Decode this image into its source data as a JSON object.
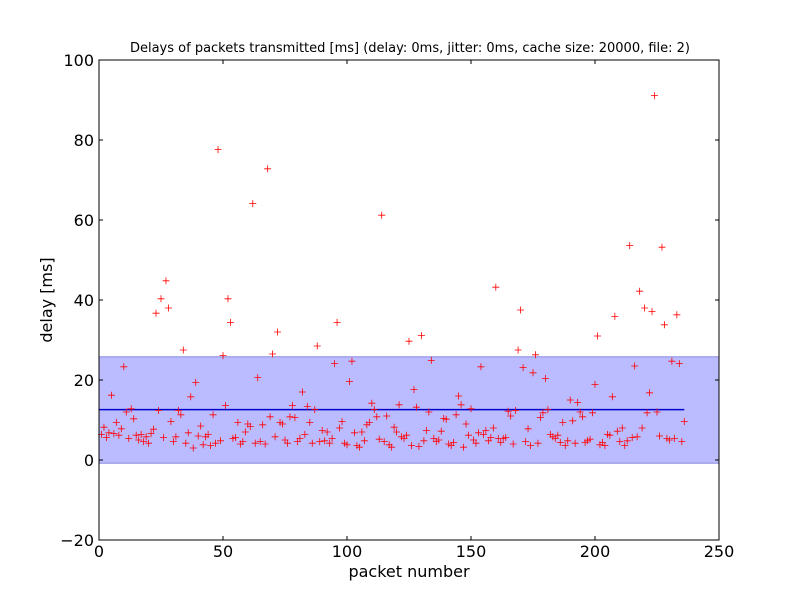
{
  "chart_data": {
    "type": "scatter",
    "title": "Delays of packets transmitted [ms] (delay: 0ms, jitter: 0ms, cache size: 20000, file: 2)",
    "xlabel": "packet number",
    "ylabel": "delay [ms]",
    "xlim": [
      0,
      250
    ],
    "ylim": [
      -20,
      100
    ],
    "xticks": [
      0,
      50,
      100,
      150,
      200,
      250
    ],
    "yticks": [
      -20,
      0,
      20,
      40,
      60,
      80,
      100
    ],
    "xtick_labels": [
      "0",
      "50",
      "100",
      "150",
      "200",
      "250"
    ],
    "ytick_labels": [
      "−20",
      "0",
      "20",
      "40",
      "60",
      "80",
      "100"
    ],
    "grid": false,
    "legend": "none",
    "colors": {
      "points": "#ff0000",
      "mean_line": "#0000cc",
      "band_fill": "#bbbbff",
      "band_edge": "#8888dd"
    },
    "mean": {
      "value": 12.6,
      "x_start": 0,
      "x_end": 236
    },
    "std_band": {
      "y_low": -0.8,
      "y_high": 25.8,
      "x_start": 0,
      "x_end": 250
    },
    "series": [
      {
        "marker": "+",
        "points": [
          [
            1,
            6.4
          ],
          [
            2,
            8.2
          ],
          [
            3,
            5.6
          ],
          [
            4,
            6.8
          ],
          [
            5,
            16.2
          ],
          [
            6,
            6.6
          ],
          [
            7,
            9.4
          ],
          [
            8,
            6.2
          ],
          [
            9,
            7.8
          ],
          [
            10,
            23.3
          ],
          [
            11,
            12.0
          ],
          [
            12,
            5.4
          ],
          [
            13,
            12.8
          ],
          [
            14,
            10.3
          ],
          [
            15,
            6.2
          ],
          [
            16,
            5.0
          ],
          [
            17,
            6.4
          ],
          [
            18,
            4.6
          ],
          [
            19,
            5.8
          ],
          [
            20,
            4.2
          ],
          [
            21,
            6.6
          ],
          [
            22,
            7.7
          ],
          [
            23,
            36.7
          ],
          [
            24,
            12.4
          ],
          [
            25,
            40.3
          ],
          [
            26,
            5.6
          ],
          [
            27,
            44.8
          ],
          [
            28,
            38.0
          ],
          [
            29,
            9.6
          ],
          [
            30,
            4.6
          ],
          [
            31,
            5.8
          ],
          [
            32,
            12.4
          ],
          [
            33,
            11.3
          ],
          [
            34,
            27.5
          ],
          [
            35,
            4.2
          ],
          [
            36,
            6.8
          ],
          [
            37,
            15.8
          ],
          [
            38,
            3.0
          ],
          [
            39,
            19.4
          ],
          [
            40,
            6.0
          ],
          [
            41,
            8.5
          ],
          [
            42,
            3.8
          ],
          [
            43,
            5.8
          ],
          [
            44,
            6.4
          ],
          [
            45,
            3.6
          ],
          [
            46,
            11.3
          ],
          [
            47,
            4.2
          ],
          [
            48,
            77.6
          ],
          [
            49,
            4.8
          ],
          [
            50,
            26.1
          ],
          [
            51,
            13.6
          ],
          [
            52,
            40.3
          ],
          [
            53,
            34.4
          ],
          [
            54,
            5.4
          ],
          [
            55,
            5.6
          ],
          [
            56,
            9.4
          ],
          [
            57,
            4.0
          ],
          [
            58,
            4.6
          ],
          [
            59,
            7.0
          ],
          [
            60,
            9.0
          ],
          [
            61,
            8.4
          ],
          [
            62,
            64.1
          ],
          [
            63,
            4.2
          ],
          [
            64,
            20.6
          ],
          [
            65,
            4.6
          ],
          [
            66,
            8.8
          ],
          [
            67,
            4.0
          ],
          [
            68,
            72.8
          ],
          [
            69,
            10.8
          ],
          [
            70,
            26.5
          ],
          [
            71,
            5.8
          ],
          [
            72,
            32.0
          ],
          [
            73,
            9.4
          ],
          [
            74,
            9.0
          ],
          [
            75,
            5.0
          ],
          [
            76,
            4.2
          ],
          [
            77,
            10.8
          ],
          [
            78,
            13.6
          ],
          [
            79,
            10.6
          ],
          [
            80,
            4.6
          ],
          [
            81,
            5.4
          ],
          [
            82,
            17.0
          ],
          [
            83,
            6.4
          ],
          [
            84,
            13.4
          ],
          [
            85,
            9.4
          ],
          [
            86,
            4.2
          ],
          [
            87,
            12.6
          ],
          [
            88,
            28.5
          ],
          [
            89,
            4.6
          ],
          [
            90,
            7.4
          ],
          [
            91,
            4.8
          ],
          [
            92,
            7.0
          ],
          [
            93,
            4.2
          ],
          [
            94,
            5.4
          ],
          [
            95,
            24.1
          ],
          [
            96,
            34.4
          ],
          [
            97,
            8.0
          ],
          [
            98,
            9.6
          ],
          [
            99,
            4.2
          ],
          [
            100,
            3.8
          ],
          [
            101,
            19.6
          ],
          [
            102,
            24.7
          ],
          [
            103,
            6.8
          ],
          [
            104,
            3.6
          ],
          [
            105,
            3.2
          ],
          [
            106,
            7.0
          ],
          [
            107,
            4.8
          ],
          [
            108,
            8.8
          ],
          [
            109,
            9.4
          ],
          [
            110,
            14.2
          ],
          [
            111,
            12.6
          ],
          [
            112,
            10.8
          ],
          [
            113,
            5.2
          ],
          [
            114,
            61.2
          ],
          [
            115,
            4.6
          ],
          [
            116,
            11.0
          ],
          [
            117,
            3.8
          ],
          [
            118,
            3.2
          ],
          [
            119,
            8.2
          ],
          [
            120,
            7.0
          ],
          [
            121,
            13.8
          ],
          [
            122,
            5.8
          ],
          [
            123,
            5.4
          ],
          [
            124,
            6.2
          ],
          [
            125,
            29.7
          ],
          [
            126,
            3.6
          ],
          [
            127,
            17.6
          ],
          [
            128,
            13.2
          ],
          [
            129,
            3.4
          ],
          [
            130,
            31.1
          ],
          [
            131,
            4.8
          ],
          [
            132,
            7.4
          ],
          [
            133,
            12.0
          ],
          [
            134,
            24.9
          ],
          [
            135,
            5.4
          ],
          [
            136,
            4.6
          ],
          [
            137,
            5.0
          ],
          [
            138,
            7.2
          ],
          [
            139,
            10.4
          ],
          [
            140,
            10.2
          ],
          [
            141,
            4.0
          ],
          [
            142,
            3.6
          ],
          [
            143,
            4.4
          ],
          [
            144,
            11.3
          ],
          [
            145,
            16.0
          ],
          [
            146,
            13.8
          ],
          [
            147,
            3.2
          ],
          [
            148,
            9.0
          ],
          [
            149,
            6.2
          ],
          [
            150,
            12.8
          ],
          [
            151,
            5.0
          ],
          [
            152,
            4.2
          ],
          [
            153,
            6.8
          ],
          [
            154,
            23.3
          ],
          [
            155,
            6.4
          ],
          [
            156,
            7.4
          ],
          [
            157,
            4.8
          ],
          [
            158,
            5.6
          ],
          [
            159,
            8.0
          ],
          [
            160,
            43.2
          ],
          [
            161,
            5.4
          ],
          [
            162,
            4.4
          ],
          [
            163,
            5.4
          ],
          [
            164,
            5.6
          ],
          [
            165,
            12.2
          ],
          [
            166,
            11.0
          ],
          [
            167,
            4.0
          ],
          [
            168,
            12.4
          ],
          [
            169,
            27.5
          ],
          [
            170,
            37.5
          ],
          [
            171,
            23.1
          ],
          [
            172,
            4.6
          ],
          [
            173,
            7.8
          ],
          [
            174,
            3.6
          ],
          [
            175,
            21.8
          ],
          [
            176,
            26.3
          ],
          [
            177,
            4.2
          ],
          [
            178,
            10.6
          ],
          [
            179,
            11.8
          ],
          [
            180,
            20.4
          ],
          [
            181,
            12.6
          ],
          [
            182,
            6.4
          ],
          [
            183,
            5.8
          ],
          [
            184,
            5.4
          ],
          [
            185,
            6.2
          ],
          [
            186,
            4.4
          ],
          [
            187,
            9.4
          ],
          [
            188,
            3.6
          ],
          [
            189,
            4.8
          ],
          [
            190,
            15.0
          ],
          [
            191,
            9.8
          ],
          [
            192,
            4.2
          ],
          [
            193,
            14.4
          ],
          [
            194,
            12.0
          ],
          [
            195,
            10.8
          ],
          [
            196,
            4.4
          ],
          [
            197,
            4.8
          ],
          [
            198,
            5.2
          ],
          [
            199,
            11.8
          ],
          [
            200,
            18.9
          ],
          [
            201,
            31.0
          ],
          [
            202,
            3.8
          ],
          [
            203,
            4.4
          ],
          [
            204,
            3.6
          ],
          [
            205,
            6.4
          ],
          [
            206,
            6.2
          ],
          [
            207,
            15.8
          ],
          [
            208,
            35.9
          ],
          [
            209,
            7.2
          ],
          [
            210,
            4.6
          ],
          [
            211,
            8.0
          ],
          [
            212,
            3.6
          ],
          [
            213,
            4.8
          ],
          [
            214,
            53.6
          ],
          [
            215,
            5.6
          ],
          [
            216,
            23.5
          ],
          [
            217,
            5.8
          ],
          [
            218,
            42.2
          ],
          [
            219,
            8.0
          ],
          [
            220,
            38.0
          ],
          [
            221,
            11.8
          ],
          [
            222,
            16.8
          ],
          [
            223,
            37.1
          ],
          [
            224,
            91.1
          ],
          [
            225,
            12.0
          ],
          [
            226,
            6.0
          ],
          [
            227,
            53.2
          ],
          [
            228,
            33.8
          ],
          [
            229,
            5.4
          ],
          [
            230,
            5.0
          ],
          [
            231,
            24.7
          ],
          [
            232,
            5.4
          ],
          [
            233,
            36.3
          ],
          [
            234,
            24.1
          ],
          [
            235,
            4.6
          ],
          [
            236,
            9.6
          ]
        ]
      }
    ]
  }
}
